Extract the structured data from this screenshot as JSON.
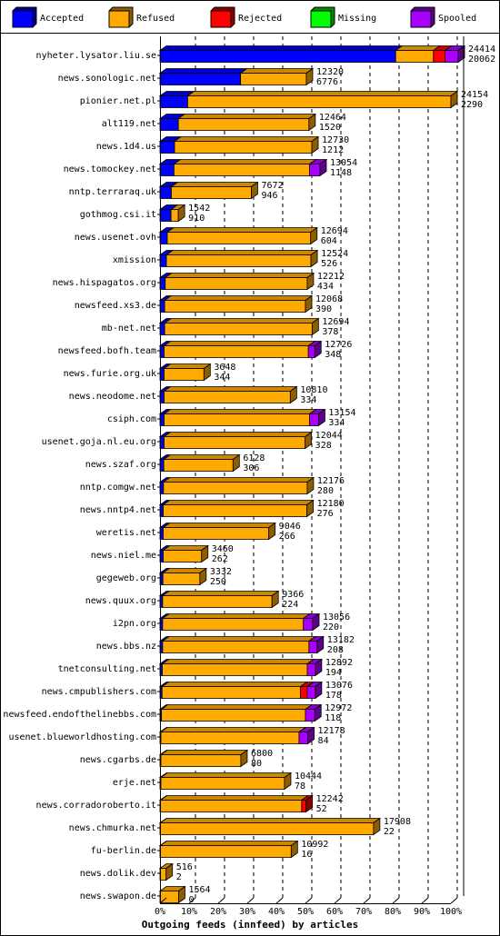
{
  "chart_data": {
    "type": "bar",
    "orientation": "horizontal",
    "stacked": true,
    "xlabel": "Outgoing feeds (innfeed) by articles",
    "x_ticks": [
      "0%",
      "10%",
      "20%",
      "30%",
      "40%",
      "50%",
      "60%",
      "70%",
      "80%",
      "90%",
      "100%"
    ],
    "xlim": [
      0,
      100
    ],
    "grid": "vertical dashed",
    "legend_position": "top",
    "series": [
      {
        "name": "Accepted",
        "color": "#0000ff"
      },
      {
        "name": "Refused",
        "color": "#ffaa00"
      },
      {
        "name": "Rejected",
        "color": "#ff0000"
      },
      {
        "name": "Missing",
        "color": "#00ff00"
      },
      {
        "name": "Spooled",
        "color": "#aa00ff"
      }
    ],
    "rows": [
      {
        "label": "nyheter.lysator.liu.se",
        "total": "24414",
        "accepted": "20062",
        "pct": [
          81,
          13,
          4,
          0,
          4.5
        ]
      },
      {
        "label": "news.sonologic.net",
        "total": "12320",
        "accepted": "6776",
        "pct": [
          27.7,
          22.6,
          0,
          0,
          0
        ]
      },
      {
        "label": "pionier.net.pl",
        "total": "24154",
        "accepted": "2290",
        "pct": [
          9.5,
          90.5,
          0,
          0,
          0
        ]
      },
      {
        "label": "alt119.net",
        "total": "12464",
        "accepted": "1520",
        "pct": [
          6.3,
          44.9,
          0,
          0,
          0
        ]
      },
      {
        "label": "news.1d4.us",
        "total": "12730",
        "accepted": "1212",
        "pct": [
          5,
          47.2,
          0,
          0,
          0
        ]
      },
      {
        "label": "news.tomockey.net",
        "total": "13054",
        "accepted": "1148",
        "pct": [
          4.8,
          46.6,
          0,
          0,
          3.6
        ]
      },
      {
        "label": "nntp.terraraq.uk",
        "total": "7672",
        "accepted": "946",
        "pct": [
          3.9,
          27.5,
          0,
          0,
          0
        ]
      },
      {
        "label": "gothmog.csi.it",
        "total": "1542",
        "accepted": "910",
        "pct": [
          3.8,
          2.5,
          0,
          0,
          0
        ]
      },
      {
        "label": "news.usenet.ovh",
        "total": "12694",
        "accepted": "604",
        "pct": [
          2.5,
          49.3,
          0,
          0,
          0
        ]
      },
      {
        "label": "xmission",
        "total": "12524",
        "accepted": "526",
        "pct": [
          2.2,
          49.7,
          0,
          0,
          0
        ]
      },
      {
        "label": "news.hispagatos.org",
        "total": "12212",
        "accepted": "434",
        "pct": [
          1.8,
          48.8,
          0,
          0,
          0
        ]
      },
      {
        "label": "newsfeed.xs3.de",
        "total": "12068",
        "accepted": "390",
        "pct": [
          1.6,
          48.4,
          0,
          0,
          0
        ]
      },
      {
        "label": "mb-net.net",
        "total": "12694",
        "accepted": "378",
        "pct": [
          1.6,
          50.7,
          0,
          0,
          0
        ]
      },
      {
        "label": "newsfeed.bofh.team",
        "total": "12726",
        "accepted": "348",
        "pct": [
          1.4,
          49.6,
          0,
          0,
          2.2
        ]
      },
      {
        "label": "news.furie.org.uk",
        "total": "3648",
        "accepted": "344",
        "pct": [
          1.4,
          13.7,
          0,
          0,
          0
        ]
      },
      {
        "label": "news.neodome.net",
        "total": "10810",
        "accepted": "334",
        "pct": [
          1.4,
          43.4,
          0,
          0,
          0
        ]
      },
      {
        "label": "csiph.com",
        "total": "13154",
        "accepted": "334",
        "pct": [
          1.4,
          50,
          0,
          0,
          3.1
        ]
      },
      {
        "label": "usenet.goja.nl.eu.org",
        "total": "12044",
        "accepted": "328",
        "pct": [
          1.4,
          48.5,
          0,
          0,
          0
        ]
      },
      {
        "label": "news.szaf.org",
        "total": "6128",
        "accepted": "306",
        "pct": [
          1.3,
          23.8,
          0,
          0,
          0
        ]
      },
      {
        "label": "nntp.comgw.net",
        "total": "12176",
        "accepted": "280",
        "pct": [
          1.2,
          49.4,
          0,
          0,
          0
        ]
      },
      {
        "label": "news.nntp4.net",
        "total": "12180",
        "accepted": "276",
        "pct": [
          1.1,
          49.4,
          0,
          0,
          0
        ]
      },
      {
        "label": "weretis.net",
        "total": "9046",
        "accepted": "266",
        "pct": [
          1.1,
          36.3,
          0,
          0,
          0
        ]
      },
      {
        "label": "news.niel.me",
        "total": "3460",
        "accepted": "262",
        "pct": [
          1.1,
          13.2,
          0,
          0,
          0
        ]
      },
      {
        "label": "gegeweb.org",
        "total": "3332",
        "accepted": "250",
        "pct": [
          1,
          12.7,
          0,
          0,
          0
        ]
      },
      {
        "label": "news.quux.org",
        "total": "9366",
        "accepted": "224",
        "pct": [
          0.9,
          37.6,
          0,
          0,
          0
        ]
      },
      {
        "label": "i2pn.org",
        "total": "13056",
        "accepted": "220",
        "pct": [
          0.9,
          48.4,
          0,
          0,
          3.2
        ]
      },
      {
        "label": "news.bbs.nz",
        "total": "13182",
        "accepted": "208",
        "pct": [
          0.9,
          50.3,
          0,
          0,
          2.8
        ]
      },
      {
        "label": "tnetconsulting.net",
        "total": "12892",
        "accepted": "194",
        "pct": [
          0.8,
          49.8,
          0,
          0,
          2.8
        ]
      },
      {
        "label": "news.cmpublishers.com",
        "total": "13076",
        "accepted": "178",
        "pct": [
          0.7,
          47.6,
          2.3,
          0,
          2.8
        ]
      },
      {
        "label": "newsfeed.endofthelinebbs.com",
        "total": "12972",
        "accepted": "118",
        "pct": [
          0.5,
          49.5,
          0,
          0,
          3.2
        ]
      },
      {
        "label": "usenet.blueworldhosting.com",
        "total": "12178",
        "accepted": "84",
        "pct": [
          0.3,
          47.5,
          0,
          0,
          3
        ]
      },
      {
        "label": "news.cgarbs.de",
        "total": "6800",
        "accepted": "80",
        "pct": [
          0.3,
          27.5,
          0,
          0,
          0
        ]
      },
      {
        "label": "erje.net",
        "total": "10444",
        "accepted": "78",
        "pct": [
          0.3,
          42.5,
          0,
          0,
          0
        ]
      },
      {
        "label": "news.corradoroberto.it",
        "total": "12242",
        "accepted": "52",
        "pct": [
          0.2,
          48.5,
          1.5,
          0,
          0
        ]
      },
      {
        "label": "news.chmurka.net",
        "total": "17908",
        "accepted": "22",
        "pct": [
          0.1,
          73.3,
          0,
          0,
          0
        ]
      },
      {
        "label": "fu-berlin.de",
        "total": "10992",
        "accepted": "16",
        "pct": [
          0.1,
          45,
          0,
          0,
          0
        ]
      },
      {
        "label": "news.dolik.dev",
        "total": "516",
        "accepted": "2",
        "pct": [
          0,
          2.1,
          0,
          0,
          0
        ]
      },
      {
        "label": "news.swapon.de",
        "total": "1564",
        "accepted": "0",
        "pct": [
          0,
          6.4,
          0,
          0,
          0
        ]
      }
    ]
  }
}
